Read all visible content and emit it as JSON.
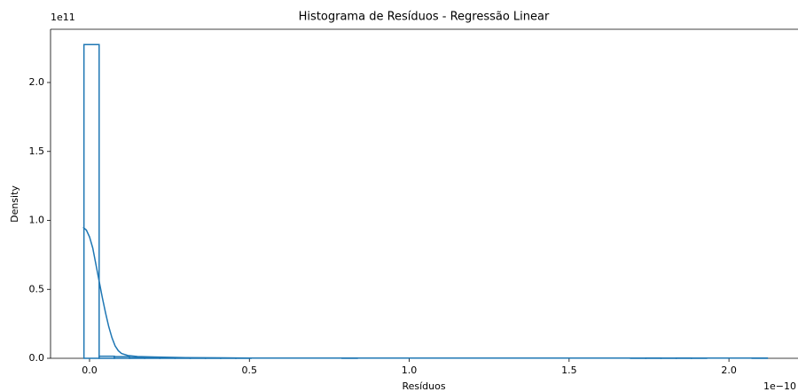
{
  "chart_data": {
    "type": "histogram",
    "title": "Histograma de Resíduos - Regressão Linear",
    "x_label": "Resíduos",
    "y_label": "Density",
    "x_offset_label": "1e−10",
    "y_offset_label": "1e11",
    "bins": [
      -0.0175,
      0.03,
      0.0775,
      0.125,
      0.1725,
      0.22,
      0.2675,
      0.315,
      0.3625,
      0.41,
      0.4575,
      0.505,
      0.5525,
      0.6,
      0.6475,
      0.695,
      0.7425,
      0.79,
      0.8375,
      0.885,
      0.9325,
      0.98,
      1.0275,
      1.075,
      1.1225,
      1.17,
      1.2175,
      1.265,
      1.3125,
      1.36,
      1.4075,
      1.455,
      1.5025,
      1.55,
      1.5975,
      1.645,
      1.6925,
      1.74,
      1.7875,
      1.835,
      1.8825,
      1.93,
      1.9775,
      2.025,
      2.0725,
      2.12
    ],
    "values": [
      2.275,
      0.015,
      0.012,
      0.006,
      0.004,
      0.003,
      0.002,
      0.001,
      0.001,
      0.001,
      0.001,
      0,
      0,
      0,
      0,
      0,
      0,
      0.002,
      0,
      0,
      0,
      0,
      0,
      0,
      0,
      0,
      0,
      0,
      0,
      0,
      0,
      0,
      0,
      0,
      0,
      0,
      0.001,
      0.002,
      0.001,
      0.002,
      0.001,
      0,
      0,
      0,
      0.002
    ],
    "color": "#1f77b4",
    "kde": {
      "x": [
        -0.02,
        -0.01,
        0,
        0.01,
        0.02,
        0.03,
        0.04,
        0.05,
        0.06,
        0.07,
        0.08,
        0.09,
        0.1,
        0.12,
        0.15,
        0.2,
        0.3,
        0.5,
        2.12
      ],
      "y": [
        0.95,
        0.93,
        0.88,
        0.8,
        0.68,
        0.56,
        0.44,
        0.33,
        0.23,
        0.15,
        0.09,
        0.055,
        0.035,
        0.02,
        0.013,
        0.01,
        0.005,
        0.002,
        0.002
      ]
    },
    "xlim": [
      -0.122,
      2.216
    ],
    "ylim": [
      0,
      2.386
    ],
    "xticks": [
      {
        "value": 0,
        "label": "0.0"
      },
      0.5,
      {
        "value": 1,
        "label": "1.0"
      },
      1.5,
      {
        "value": 2,
        "label": "2.0"
      }
    ],
    "yticks": [
      {
        "value": 0,
        "label": "0.0"
      },
      0.5,
      {
        "value": 1,
        "label": "1.0"
      },
      1.5,
      {
        "value": 2,
        "label": "2.0"
      }
    ]
  }
}
